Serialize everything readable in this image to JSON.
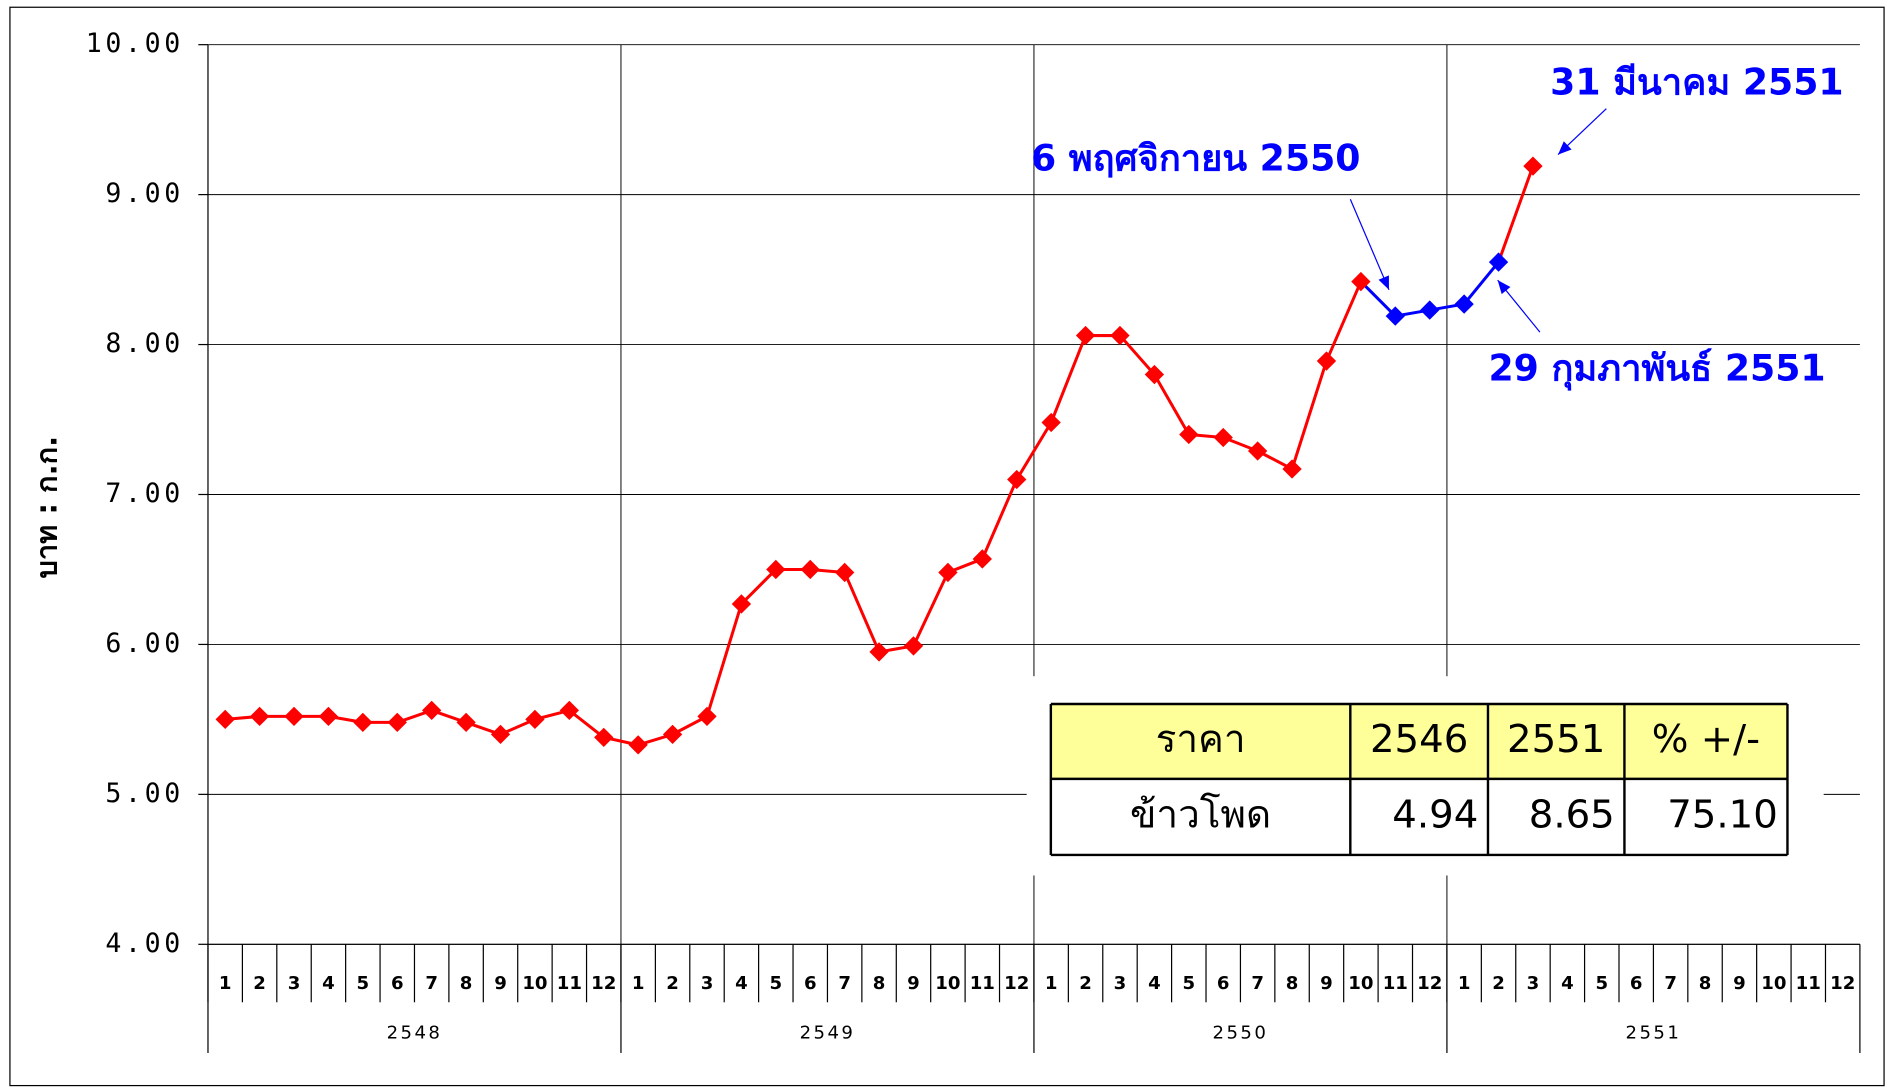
{
  "chart_data": {
    "type": "line",
    "y_label": "บาท : ก.ก.",
    "categories": [
      "1",
      "2",
      "3",
      "4",
      "5",
      "6",
      "7",
      "8",
      "9",
      "10",
      "11",
      "12",
      "1",
      "2",
      "3",
      "4",
      "5",
      "6",
      "7",
      "8",
      "9",
      "10",
      "11",
      "12",
      "1",
      "2",
      "3",
      "4",
      "5",
      "6",
      "7",
      "8",
      "9",
      "10",
      "11",
      "12",
      "1",
      "2",
      "3",
      "4",
      "5",
      "6",
      "7",
      "8",
      "9",
      "10",
      "11",
      "12"
    ],
    "groups": [
      "2548",
      "2549",
      "2550",
      "2551"
    ],
    "series": [
      {
        "color": "#ff0000",
        "highlight_color": "#0000ff",
        "highlight_points": [
          34,
          35,
          36,
          37
        ],
        "values": [
          5.5,
          5.52,
          5.52,
          5.52,
          5.48,
          5.48,
          5.56,
          5.48,
          5.4,
          5.5,
          5.56,
          5.38,
          5.33,
          5.4,
          5.52,
          6.27,
          6.5,
          6.5,
          6.48,
          5.95,
          5.99,
          6.48,
          6.57,
          7.1,
          7.48,
          8.06,
          8.06,
          7.8,
          7.4,
          7.38,
          7.29,
          7.17,
          7.89,
          8.42,
          8.19,
          8.23,
          8.27,
          8.55,
          9.19,
          null,
          null,
          null,
          null,
          null,
          null,
          null,
          null,
          null
        ]
      }
    ],
    "ylim": [
      4,
      10
    ],
    "yticks": [
      {
        "value": 4,
        "label": "4.00"
      },
      {
        "value": 5,
        "label": "5.00"
      },
      {
        "value": 6,
        "label": "6.00"
      },
      {
        "value": 7,
        "label": "7.00"
      },
      {
        "value": 8,
        "label": "8.00"
      },
      {
        "value": 9,
        "label": "9.00"
      },
      {
        "value": 10,
        "label": "10.00"
      }
    ],
    "grid": true,
    "annotations": [
      "6 พฤศจิกายน 2550",
      "29 กุมภาพันธ์ 2551",
      "31 มีนาคม 2551"
    ],
    "table": {
      "header": [
        "ราคา",
        "2546",
        "2551",
        "% +/-"
      ],
      "rows": [
        [
          "ข้าวโพด",
          "4.94",
          "8.65",
          "75.10"
        ]
      ]
    }
  }
}
